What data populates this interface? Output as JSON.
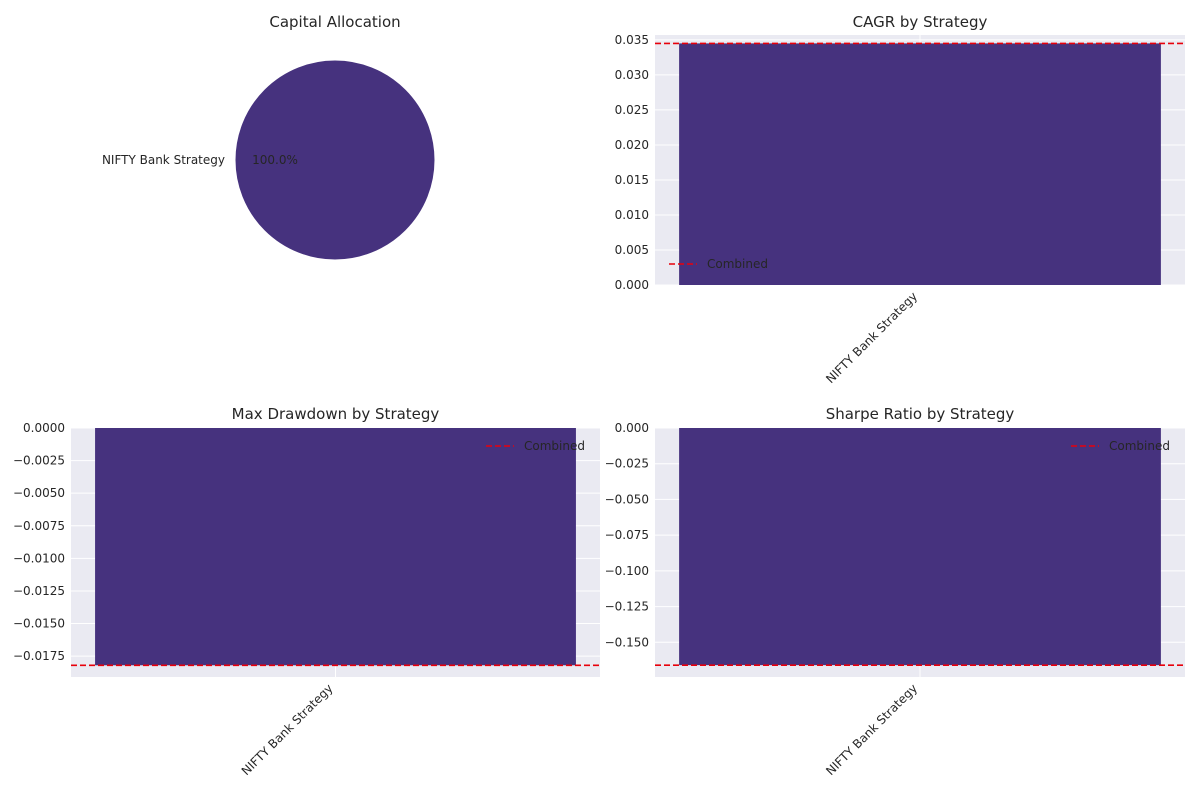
{
  "colors": {
    "bar": "#46327e",
    "combined_line": "#e8000b",
    "axes_bg": "#eaeaf2",
    "grid": "#ffffff",
    "text": "#262626"
  },
  "chart_data": [
    {
      "type": "pie",
      "title": "Capital Allocation",
      "categories": [
        "NIFTY Bank Strategy"
      ],
      "values": [
        100.0
      ],
      "percent_labels": [
        "100.0%"
      ]
    },
    {
      "type": "bar",
      "title": "CAGR by Strategy",
      "categories": [
        "NIFTY Bank Strategy"
      ],
      "values": [
        0.0345
      ],
      "combined": 0.0345,
      "legend": [
        "Combined"
      ],
      "legend_position": "lower-left",
      "ylim": [
        0.0,
        0.0357
      ],
      "yticks": [
        "0.000",
        "0.005",
        "0.010",
        "0.015",
        "0.020",
        "0.025",
        "0.030",
        "0.035"
      ],
      "ytick_values": [
        0.0,
        0.005,
        0.01,
        0.015,
        0.02,
        0.025,
        0.03,
        0.035
      ]
    },
    {
      "type": "bar",
      "title": "Max Drawdown by Strategy",
      "categories": [
        "NIFTY Bank Strategy"
      ],
      "values": [
        -0.0182
      ],
      "combined": -0.0182,
      "legend": [
        "Combined"
      ],
      "legend_position": "upper-right",
      "ylim": [
        -0.0191,
        0.0
      ],
      "yticks": [
        "0.0000",
        "−0.0025",
        "−0.0050",
        "−0.0075",
        "−0.0100",
        "−0.0125",
        "−0.0150",
        "−0.0175"
      ],
      "ytick_values": [
        0.0,
        -0.0025,
        -0.005,
        -0.0075,
        -0.01,
        -0.0125,
        -0.015,
        -0.0175
      ]
    },
    {
      "type": "bar",
      "title": "Sharpe Ratio by Strategy",
      "categories": [
        "NIFTY Bank Strategy"
      ],
      "values": [
        -0.166
      ],
      "combined": -0.166,
      "legend": [
        "Combined"
      ],
      "legend_position": "upper-right",
      "ylim": [
        -0.1743,
        0.0
      ],
      "yticks": [
        "0.000",
        "−0.025",
        "−0.050",
        "−0.075",
        "−0.100",
        "−0.125",
        "−0.150"
      ],
      "ytick_values": [
        0.0,
        -0.025,
        -0.05,
        -0.075,
        -0.1,
        -0.125,
        -0.15
      ]
    }
  ]
}
